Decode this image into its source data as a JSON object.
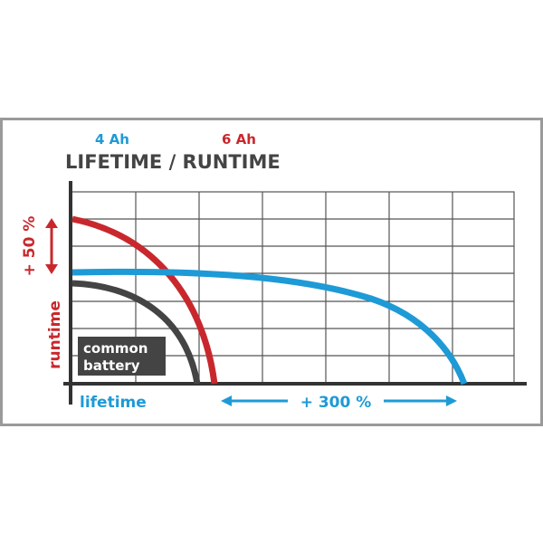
{
  "header": {
    "capacity_small": "4 Ah",
    "capacity_large": "6 Ah",
    "title": "LIFETIME / RUNTIME"
  },
  "axes": {
    "y_gain": "+ 50 %",
    "y_label": "runtime",
    "x_label": "lifetime",
    "x_gain": "+ 300 %"
  },
  "legend": {
    "common_lines": [
      "common",
      "battery"
    ]
  }
}
